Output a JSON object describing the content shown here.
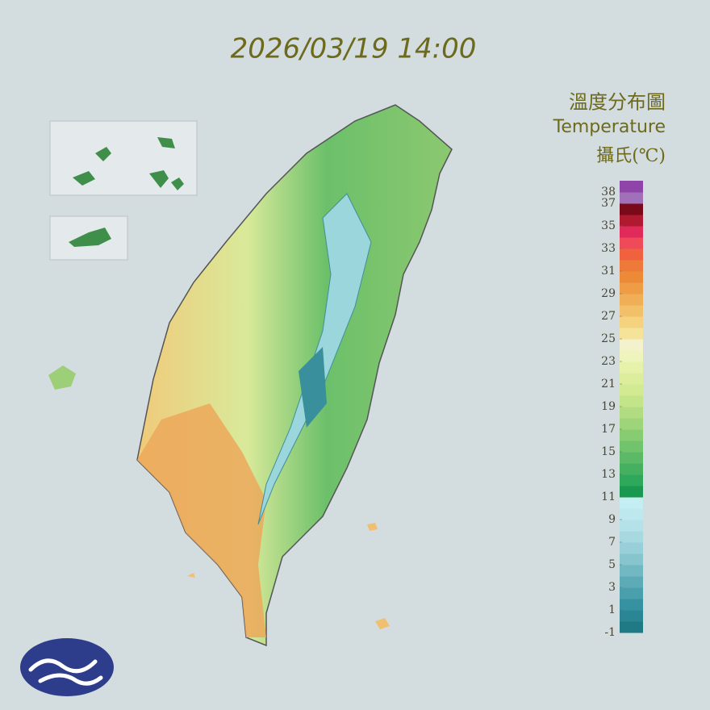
{
  "title": "2026/03/19 14:00",
  "legend": {
    "title": "溫度分布圖",
    "subtitle": "Temperature",
    "unit": "攝氏(℃)",
    "range": [
      -1,
      39
    ],
    "ticks": [
      38,
      37,
      35,
      33,
      31,
      29,
      27,
      25,
      23,
      21,
      19,
      17,
      15,
      13,
      11,
      9,
      7,
      5,
      3,
      1,
      -1
    ],
    "colors": [
      "#1f7a86",
      "#2a8693",
      "#3692a0",
      "#4a9fac",
      "#5eabb8",
      "#72b8c3",
      "#86c4ce",
      "#98cfd8",
      "#a8d9e1",
      "#b4e2e8",
      "#bce8ee",
      "#c4eef2",
      "#1a9850",
      "#2ea85a",
      "#45b060",
      "#5cba66",
      "#72c46c",
      "#88cc72",
      "#9ed47a",
      "#b2dc82",
      "#c4e48a",
      "#d2ea92",
      "#dcee9c",
      "#e6f2aa",
      "#eef4bc",
      "#f4f2cc",
      "#f5e39a",
      "#f4d27e",
      "#f2c068",
      "#f0ae56",
      "#ee9c46",
      "#ec8a38",
      "#ee7a3a",
      "#f0623e",
      "#ee4a5a",
      "#e02a5a",
      "#b01a30",
      "#7a0a1a",
      "#a070b8",
      "#8e44a8"
    ]
  }
}
